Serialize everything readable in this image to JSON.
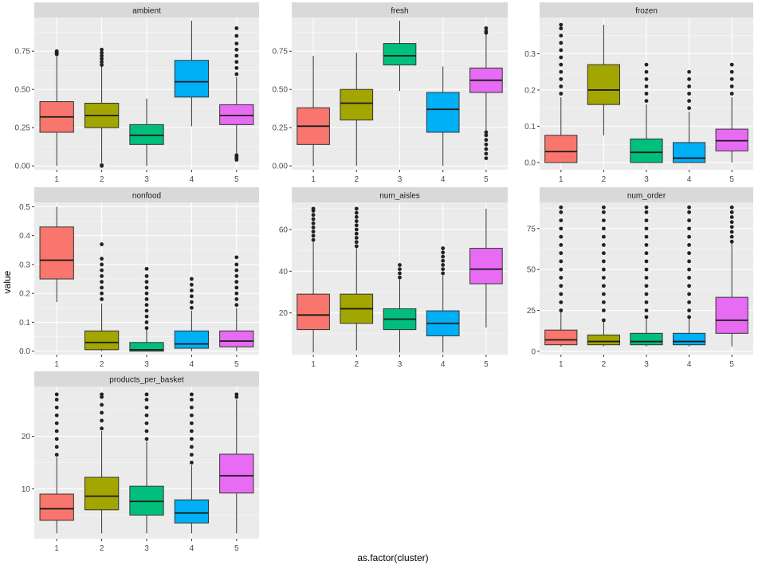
{
  "x_axis_title": "as.factor(cluster)",
  "y_axis_title": "value",
  "colors": {
    "panel_bg": "#ebebeb",
    "strip_bg": "#d9d9d9",
    "grid": "#ffffff",
    "text": "#4d4d4d",
    "title_text": "#000000",
    "cluster_1": "#f8766d",
    "cluster_2": "#a3a500",
    "cluster_3": "#00bf7d",
    "cluster_4": "#00b0f6",
    "cluster_5": "#e76bf3"
  },
  "chart_data": [
    {
      "type": "box",
      "title": "ambient",
      "categories": [
        "1",
        "2",
        "3",
        "4",
        "5"
      ],
      "ylim": [
        -0.025,
        0.97
      ],
      "yticks": [
        0,
        0.25,
        0.5,
        0.75
      ],
      "ytick_labels": [
        "0.00",
        "0.25",
        "0.50",
        "0.75"
      ],
      "boxes": [
        {
          "low": 0.0,
          "q1": 0.22,
          "median": 0.32,
          "q3": 0.42,
          "high": 0.72,
          "outliers": [
            0.73,
            0.735,
            0.74,
            0.745,
            0.75
          ]
        },
        {
          "low": 0.02,
          "q1": 0.25,
          "median": 0.33,
          "q3": 0.41,
          "high": 0.65,
          "outliers": [
            0.0,
            0.005,
            0.66,
            0.68,
            0.7,
            0.72,
            0.74,
            0.76
          ]
        },
        {
          "low": 0.0,
          "q1": 0.14,
          "median": 0.2,
          "q3": 0.27,
          "high": 0.44,
          "outliers": []
        },
        {
          "low": 0.26,
          "q1": 0.45,
          "median": 0.55,
          "q3": 0.69,
          "high": 0.95,
          "outliers": []
        },
        {
          "low": 0.08,
          "q1": 0.27,
          "median": 0.33,
          "q3": 0.4,
          "high": 0.58,
          "outliers": [
            0.04,
            0.05,
            0.06,
            0.07,
            0.6,
            0.64,
            0.68,
            0.72,
            0.76,
            0.8,
            0.85,
            0.9
          ]
        }
      ]
    },
    {
      "type": "box",
      "title": "fresh",
      "categories": [
        "1",
        "2",
        "3",
        "4",
        "5"
      ],
      "ylim": [
        -0.025,
        0.97
      ],
      "yticks": [
        0,
        0.25,
        0.5,
        0.75
      ],
      "ytick_labels": [
        "0.00",
        "0.25",
        "0.50",
        "0.75"
      ],
      "boxes": [
        {
          "low": 0.0,
          "q1": 0.14,
          "median": 0.26,
          "q3": 0.38,
          "high": 0.72,
          "outliers": []
        },
        {
          "low": 0.0,
          "q1": 0.3,
          "median": 0.41,
          "q3": 0.5,
          "high": 0.74,
          "outliers": []
        },
        {
          "low": 0.49,
          "q1": 0.66,
          "median": 0.72,
          "q3": 0.8,
          "high": 0.95,
          "outliers": []
        },
        {
          "low": 0.0,
          "q1": 0.22,
          "median": 0.37,
          "q3": 0.48,
          "high": 0.65,
          "outliers": []
        },
        {
          "low": 0.23,
          "q1": 0.48,
          "median": 0.56,
          "q3": 0.64,
          "high": 0.86,
          "outliers": [
            0.05,
            0.08,
            0.11,
            0.14,
            0.17,
            0.2,
            0.22,
            0.87,
            0.88,
            0.9
          ]
        }
      ]
    },
    {
      "type": "box",
      "title": "frozen",
      "categories": [
        "1",
        "2",
        "3",
        "4",
        "5"
      ],
      "ylim": [
        -0.02,
        0.4
      ],
      "yticks": [
        0,
        0.1,
        0.2,
        0.3
      ],
      "ytick_labels": [
        "0.0",
        "0.1",
        "0.2",
        "0.3"
      ],
      "boxes": [
        {
          "low": 0.0,
          "q1": 0.0,
          "median": 0.03,
          "q3": 0.075,
          "high": 0.18,
          "outliers": [
            0.19,
            0.21,
            0.23,
            0.25,
            0.27,
            0.29,
            0.31,
            0.33,
            0.35,
            0.37,
            0.38
          ]
        },
        {
          "low": 0.075,
          "q1": 0.16,
          "median": 0.2,
          "q3": 0.27,
          "high": 0.38,
          "outliers": []
        },
        {
          "low": 0.0,
          "q1": 0.0,
          "median": 0.028,
          "q3": 0.065,
          "high": 0.16,
          "outliers": [
            0.17,
            0.19,
            0.21,
            0.23,
            0.25,
            0.27
          ]
        },
        {
          "low": 0.0,
          "q1": 0.0,
          "median": 0.012,
          "q3": 0.055,
          "high": 0.14,
          "outliers": [
            0.15,
            0.17,
            0.19,
            0.21,
            0.23,
            0.25
          ]
        },
        {
          "low": 0.0,
          "q1": 0.032,
          "median": 0.06,
          "q3": 0.092,
          "high": 0.18,
          "outliers": [
            0.19,
            0.21,
            0.23,
            0.25,
            0.27
          ]
        }
      ]
    },
    {
      "type": "box",
      "title": "nonfood",
      "categories": [
        "1",
        "2",
        "3",
        "4",
        "5"
      ],
      "ylim": [
        -0.012,
        0.515
      ],
      "yticks": [
        0,
        0.1,
        0.2,
        0.3,
        0.4,
        0.5
      ],
      "ytick_labels": [
        "0.0",
        "0.1",
        "0.2",
        "0.3",
        "0.4",
        "0.5"
      ],
      "boxes": [
        {
          "low": 0.17,
          "q1": 0.25,
          "median": 0.315,
          "q3": 0.43,
          "high": 0.5,
          "outliers": []
        },
        {
          "low": 0.0,
          "q1": 0.005,
          "median": 0.03,
          "q3": 0.07,
          "high": 0.165,
          "outliers": [
            0.18,
            0.2,
            0.22,
            0.24,
            0.26,
            0.28,
            0.3,
            0.32,
            0.37
          ]
        },
        {
          "low": 0.0,
          "q1": 0.0,
          "median": 0.005,
          "q3": 0.03,
          "high": 0.075,
          "outliers": [
            0.08,
            0.1,
            0.12,
            0.14,
            0.16,
            0.18,
            0.2,
            0.22,
            0.24,
            0.26,
            0.285
          ]
        },
        {
          "low": 0.0,
          "q1": 0.01,
          "median": 0.025,
          "q3": 0.07,
          "high": 0.14,
          "outliers": [
            0.15,
            0.17,
            0.19,
            0.21,
            0.23,
            0.25
          ]
        },
        {
          "low": 0.0,
          "q1": 0.015,
          "median": 0.035,
          "q3": 0.07,
          "high": 0.15,
          "outliers": [
            0.16,
            0.18,
            0.2,
            0.22,
            0.24,
            0.26,
            0.28,
            0.3,
            0.325
          ]
        }
      ]
    },
    {
      "type": "box",
      "title": "num_aisles",
      "categories": [
        "1",
        "2",
        "3",
        "4",
        "5"
      ],
      "ylim": [
        0,
        73
      ],
      "yticks": [
        20,
        40,
        60
      ],
      "ytick_labels": [
        "20",
        "40",
        "60"
      ],
      "boxes": [
        {
          "low": 1,
          "q1": 12,
          "median": 19,
          "q3": 29,
          "high": 54,
          "outliers": [
            55,
            57,
            59,
            61,
            63,
            65,
            67,
            69,
            70
          ]
        },
        {
          "low": 2,
          "q1": 15,
          "median": 22,
          "q3": 29,
          "high": 51,
          "outliers": [
            52,
            54,
            56,
            58,
            60,
            62,
            64,
            66,
            68,
            70
          ]
        },
        {
          "low": 1,
          "q1": 12,
          "median": 17,
          "q3": 22,
          "high": 36,
          "outliers": [
            37,
            39,
            41,
            43
          ]
        },
        {
          "low": 1,
          "q1": 9,
          "median": 15,
          "q3": 21,
          "high": 38,
          "outliers": [
            39,
            41,
            43,
            45,
            47,
            49,
            51
          ]
        },
        {
          "low": 13,
          "q1": 34,
          "median": 41,
          "q3": 51,
          "high": 70,
          "outliers": []
        }
      ]
    },
    {
      "type": "box",
      "title": "num_order",
      "categories": [
        "1",
        "2",
        "3",
        "4",
        "5"
      ],
      "ylim": [
        -2,
        91
      ],
      "yticks": [
        0,
        25,
        50,
        75
      ],
      "ytick_labels": [
        "0",
        "25",
        "50",
        "75"
      ],
      "boxes": [
        {
          "low": 3,
          "q1": 4,
          "median": 7,
          "q3": 13,
          "high": 24,
          "outliers": [
            25,
            30,
            35,
            40,
            45,
            50,
            55,
            60,
            65,
            70,
            75,
            80,
            85,
            88
          ]
        },
        {
          "low": 3,
          "q1": 4,
          "median": 6,
          "q3": 10,
          "high": 18,
          "outliers": [
            19,
            25,
            30,
            35,
            40,
            45,
            50,
            55,
            60,
            65,
            70,
            75,
            80,
            85,
            88
          ]
        },
        {
          "low": 3,
          "q1": 4,
          "median": 6,
          "q3": 11,
          "high": 20,
          "outliers": [
            21,
            25,
            30,
            35,
            40,
            45,
            50,
            55,
            60,
            65,
            70,
            75,
            80,
            85,
            88
          ]
        },
        {
          "low": 3,
          "q1": 4,
          "median": 6,
          "q3": 11,
          "high": 20,
          "outliers": [
            21,
            25,
            30,
            35,
            40,
            45,
            50,
            55,
            60,
            65,
            70,
            75,
            80,
            85,
            88
          ]
        },
        {
          "low": 3,
          "q1": 11,
          "median": 19,
          "q3": 33,
          "high": 66,
          "outliers": [
            67,
            70,
            73,
            76,
            79,
            82,
            85,
            88
          ]
        }
      ]
    },
    {
      "type": "box",
      "title": "products_per_basket",
      "categories": [
        "1",
        "2",
        "3",
        "4",
        "5"
      ],
      "ylim": [
        0.5,
        29.5
      ],
      "yticks": [
        10,
        20
      ],
      "ytick_labels": [
        "10",
        "20"
      ],
      "boxes": [
        {
          "low": 1.5,
          "q1": 4,
          "median": 6.2,
          "q3": 9,
          "high": 16,
          "outliers": [
            16.5,
            18,
            19.5,
            21,
            22.5,
            24,
            25.5,
            27,
            28
          ]
        },
        {
          "low": 1.5,
          "q1": 6,
          "median": 8.6,
          "q3": 12.2,
          "high": 21,
          "outliers": [
            21.5,
            23,
            24.5,
            26,
            27.5,
            28
          ]
        },
        {
          "low": 1.5,
          "q1": 5,
          "median": 7.6,
          "q3": 10.5,
          "high": 19,
          "outliers": [
            19.5,
            21,
            22.5,
            24,
            25.5,
            27,
            28
          ]
        },
        {
          "low": 1.5,
          "q1": 3.5,
          "median": 5.4,
          "q3": 7.9,
          "high": 14.5,
          "outliers": [
            15,
            16.5,
            18,
            19.5,
            21,
            22.5,
            24,
            25.5,
            27,
            28
          ]
        },
        {
          "low": 1.5,
          "q1": 9.2,
          "median": 12.5,
          "q3": 16.6,
          "high": 27,
          "outliers": [
            27.5,
            28
          ]
        }
      ]
    }
  ]
}
